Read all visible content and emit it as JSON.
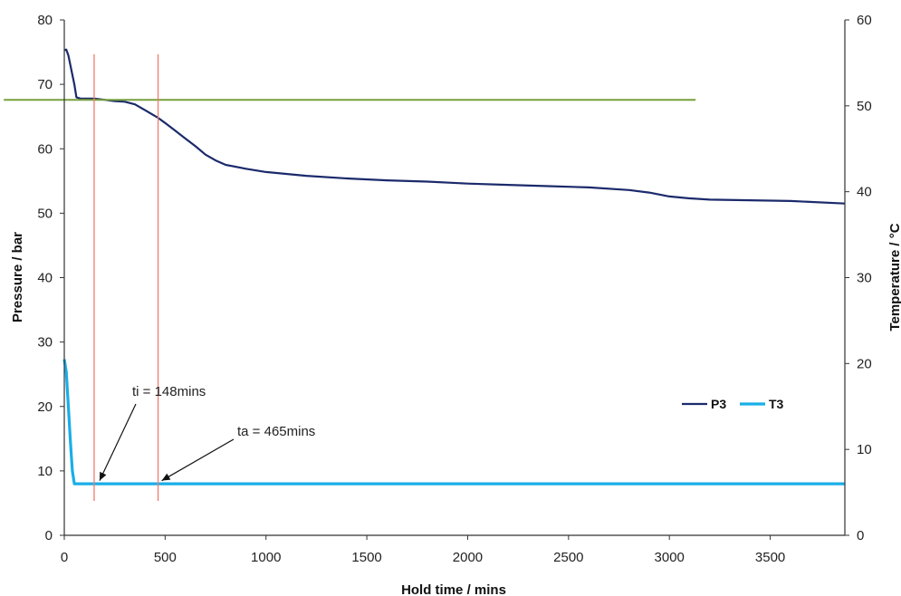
{
  "chart_data": {
    "type": "line",
    "xlabel": "Hold time / mins",
    "ylabel_left": "Pressure / bar",
    "ylabel_right": "Temperature / °C",
    "xlim": [
      0,
      3870
    ],
    "ylim_left": [
      0,
      80
    ],
    "ylim_right": [
      0,
      60
    ],
    "x_ticks": [
      0,
      500,
      1000,
      1500,
      2000,
      2500,
      3000,
      3500
    ],
    "y_ticks_left": [
      0,
      10,
      20,
      30,
      40,
      50,
      60,
      70,
      80
    ],
    "y_ticks_right": [
      0,
      10,
      20,
      30,
      40,
      50,
      60
    ],
    "grid": false,
    "legend_position": "right-middle",
    "series": [
      {
        "name": "P3",
        "axis": "left",
        "color": "#1b2a6b",
        "x": [
          0,
          10,
          20,
          30,
          40,
          50,
          60,
          80,
          148,
          200,
          250,
          300,
          350,
          400,
          465,
          500,
          550,
          600,
          650,
          700,
          750,
          800,
          900,
          1000,
          1100,
          1200,
          1400,
          1600,
          1800,
          2000,
          2200,
          2400,
          2600,
          2800,
          2900,
          3000,
          3100,
          3200,
          3400,
          3600,
          3870
        ],
        "y": [
          75.3,
          75.4,
          74.5,
          73.0,
          71.5,
          70.0,
          68.0,
          67.8,
          67.8,
          67.6,
          67.4,
          67.3,
          66.9,
          66.0,
          64.8,
          64.0,
          62.8,
          61.6,
          60.4,
          59.1,
          58.2,
          57.5,
          56.9,
          56.4,
          56.1,
          55.8,
          55.4,
          55.1,
          54.9,
          54.6,
          54.4,
          54.2,
          54.0,
          53.6,
          53.2,
          52.6,
          52.3,
          52.1,
          52.0,
          51.9,
          51.5
        ]
      },
      {
        "name": "T3",
        "axis": "right",
        "color": "#19aee8",
        "x": [
          0,
          10,
          20,
          30,
          40,
          50,
          60,
          148,
          465,
          1000,
          2000,
          3000,
          3870
        ],
        "y": [
          20.5,
          19.0,
          15.0,
          11.0,
          7.5,
          6.0,
          6.0,
          6.0,
          6.0,
          6.0,
          6.0,
          6.0,
          6.0
        ]
      },
      {
        "axis": "left",
        "color": "#77a03c",
        "x": [
          -300,
          3130
        ],
        "y": [
          67.6,
          67.6
        ]
      }
    ],
    "markers": [
      {
        "x": 148,
        "color": "#f07a6a"
      },
      {
        "x": 465,
        "color": "#f07a6a"
      }
    ],
    "annotations": [
      {
        "text": "ti = 148mins",
        "target_x": 148,
        "target_y": 8.2
      },
      {
        "text": "ta = 465mins",
        "target_x": 465,
        "target_y": 8.2
      }
    ]
  }
}
